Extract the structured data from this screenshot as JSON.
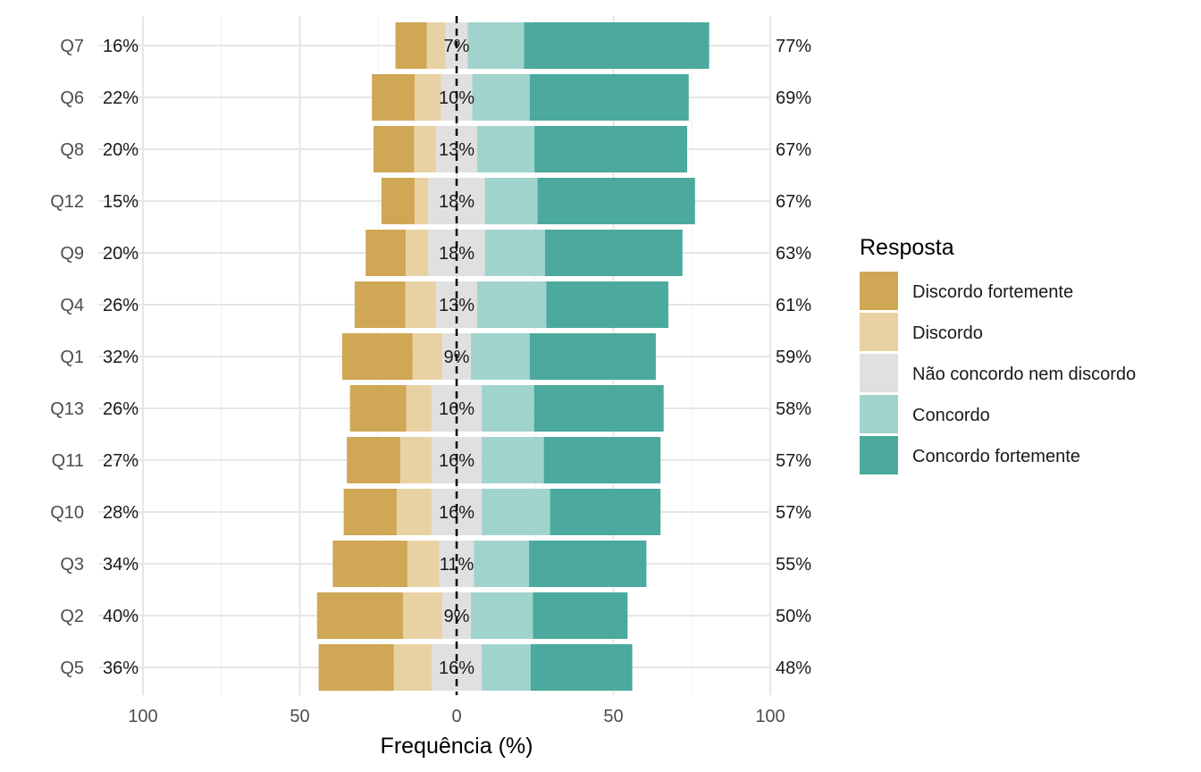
{
  "chart_data": {
    "type": "bar",
    "orientation": "horizontal",
    "stacking": "diverging",
    "xlabel": "Frequência (%)",
    "ylabel": "",
    "xlim": [
      -100,
      100
    ],
    "xticks": [
      -100,
      -50,
      0,
      50,
      100
    ],
    "xtick_labels": [
      "100",
      "50",
      "0",
      "50",
      "100"
    ],
    "grid": true,
    "legend_position": "right",
    "legend_title": "Resposta",
    "categories": [
      "Q7",
      "Q6",
      "Q8",
      "Q12",
      "Q9",
      "Q4",
      "Q1",
      "Q13",
      "Q11",
      "Q10",
      "Q3",
      "Q2",
      "Q5"
    ],
    "series": [
      {
        "name": "Discordo fortemente",
        "color": "#D0A755",
        "values": [
          10,
          13.6,
          13,
          10.6,
          12.8,
          16.2,
          22.5,
          17.9,
          17.1,
          16.9,
          23.8,
          27.4,
          24
        ]
      },
      {
        "name": "Discordo",
        "color": "#E8D1A3",
        "values": [
          6,
          8.4,
          7,
          4.4,
          7.2,
          9.8,
          9.5,
          8.1,
          9.9,
          11.1,
          10.2,
          12.6,
          12
        ]
      },
      {
        "name": "Não concordo nem discordo",
        "color": "#E0E0E0",
        "values": [
          7,
          10,
          13,
          18,
          18,
          13,
          9,
          16,
          16,
          16,
          11,
          9,
          16
        ]
      },
      {
        "name": "Concordo",
        "color": "#A0D3CC",
        "values": [
          18,
          18.3,
          18.3,
          16.8,
          19.2,
          22.1,
          18.8,
          16.7,
          19.8,
          21.8,
          17.6,
          19.8,
          15.6
        ]
      },
      {
        "name": "Concordo fortemente",
        "color": "#4BA99D",
        "values": [
          59,
          50.7,
          48.7,
          50.2,
          43.8,
          38.9,
          40.2,
          41.3,
          37.2,
          35.2,
          37.4,
          30.2,
          32.4
        ]
      }
    ],
    "left_labels": [
      "16%",
      "22%",
      "20%",
      "15%",
      "20%",
      "26%",
      "32%",
      "26%",
      "27%",
      "28%",
      "34%",
      "40%",
      "36%"
    ],
    "center_labels": [
      "7%",
      "10%",
      "13%",
      "18%",
      "18%",
      "13%",
      "9%",
      "16%",
      "16%",
      "16%",
      "11%",
      "9%",
      "16%"
    ],
    "right_labels": [
      "77%",
      "69%",
      "67%",
      "67%",
      "63%",
      "61%",
      "59%",
      "58%",
      "57%",
      "57%",
      "55%",
      "50%",
      "48%"
    ]
  }
}
